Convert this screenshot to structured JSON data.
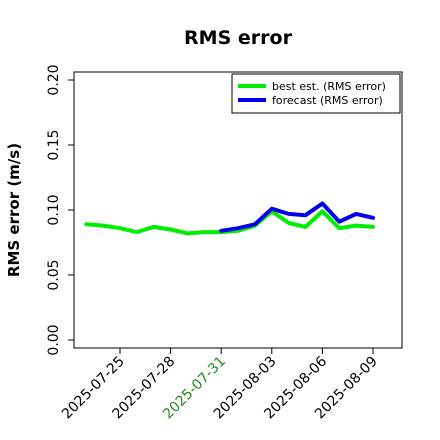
{
  "colors": {
    "best": "#00ee00",
    "forecast": "#0000ee",
    "highlight_tick": "#228b22",
    "axis": "#000000"
  },
  "chart_data": {
    "type": "line",
    "title": "RMS error",
    "xlabel": "",
    "ylabel": "RMS error (m/s)",
    "ylim": [
      0.0,
      0.21
    ],
    "yticks": [
      0.0,
      0.05,
      0.1,
      0.15,
      0.2
    ],
    "ytick_labels": [
      "0.00",
      "0.05",
      "0.10",
      "0.15",
      "0.20"
    ],
    "xlim": [
      "2025-07-22",
      "2025-08-10"
    ],
    "xticks": [
      "2025-07-25",
      "2025-07-28",
      "2025-07-31",
      "2025-08-03",
      "2025-08-06",
      "2025-08-09"
    ],
    "xtick_labels": [
      "2025-07-25",
      "2025-07-28",
      "2025-07-31",
      "2025-08-03",
      "2025-08-06",
      "2025-08-09"
    ],
    "highlighted_xtick": "2025-07-31",
    "grid": false,
    "legend_position": "top-right",
    "series": [
      {
        "name": "best est. (RMS error)",
        "color_key": "best",
        "x": [
          "2025-07-23",
          "2025-07-24",
          "2025-07-25",
          "2025-07-26",
          "2025-07-27",
          "2025-07-28",
          "2025-07-29",
          "2025-07-30",
          "2025-07-31",
          "2025-08-01",
          "2025-08-02",
          "2025-08-03",
          "2025-08-04",
          "2025-08-05",
          "2025-08-06",
          "2025-08-07",
          "2025-08-08",
          "2025-08-09"
        ],
        "y": [
          0.089,
          0.088,
          0.086,
          0.083,
          0.087,
          0.085,
          0.082,
          0.083,
          0.083,
          0.084,
          0.088,
          0.099,
          0.09,
          0.087,
          0.099,
          0.086,
          0.088,
          0.087
        ]
      },
      {
        "name": "forecast (RMS error)",
        "color_key": "forecast",
        "x": [
          "2025-07-31",
          "2025-08-01",
          "2025-08-02",
          "2025-08-03",
          "2025-08-04",
          "2025-08-05",
          "2025-08-06",
          "2025-08-07",
          "2025-08-08",
          "2025-08-09"
        ],
        "y": [
          0.084,
          0.086,
          0.089,
          0.101,
          0.097,
          0.096,
          0.105,
          0.091,
          0.097,
          0.094
        ]
      }
    ]
  }
}
